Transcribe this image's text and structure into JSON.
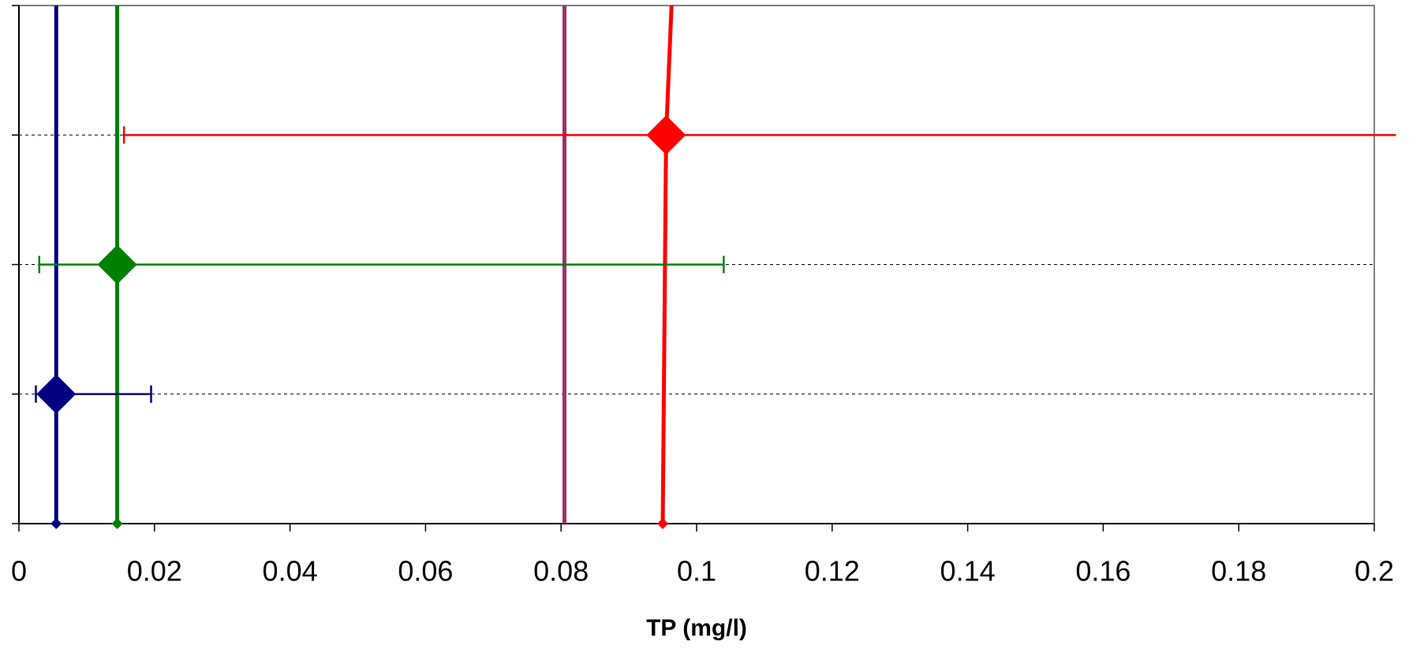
{
  "chart_data": {
    "type": "scatter",
    "x_label": "TP (mg/l)",
    "xlim": [
      0,
      0.2
    ],
    "xticks": [
      0,
      0.02,
      0.04,
      0.06,
      0.08,
      0.1,
      0.12,
      0.14,
      0.16,
      0.18,
      0.2
    ],
    "ylim": [
      0,
      4
    ],
    "yticks": [
      0,
      1,
      2,
      3,
      4
    ],
    "grid": true,
    "points": [
      {
        "color": "#000080",
        "x": 0.0055,
        "y": 1,
        "x_low": 0.0025,
        "x_high": 0.0195
      },
      {
        "color": "#008000",
        "x": 0.0145,
        "y": 2,
        "x_low": 0.003,
        "x_high": 0.104
      },
      {
        "color": "#ff0000",
        "x": 0.0955,
        "y": 3,
        "x_low": 0.0155,
        "x_high": 0.2032
      }
    ],
    "lines": [
      {
        "color": "#000080",
        "x": [
          0.0055,
          0.0055
        ],
        "y": [
          0,
          4
        ],
        "end_marker": true
      },
      {
        "color": "#008000",
        "x": [
          0.0145,
          0.0145
        ],
        "y": [
          0,
          4
        ],
        "end_marker": true
      },
      {
        "color": "#993366",
        "x": [
          0.0805,
          0.0805
        ],
        "y": [
          0,
          4
        ],
        "end_marker": false
      },
      {
        "color": "#ff0000",
        "x": [
          0.095,
          0.0955,
          0.0963
        ],
        "y": [
          0,
          3,
          4
        ],
        "end_marker": true
      }
    ]
  }
}
